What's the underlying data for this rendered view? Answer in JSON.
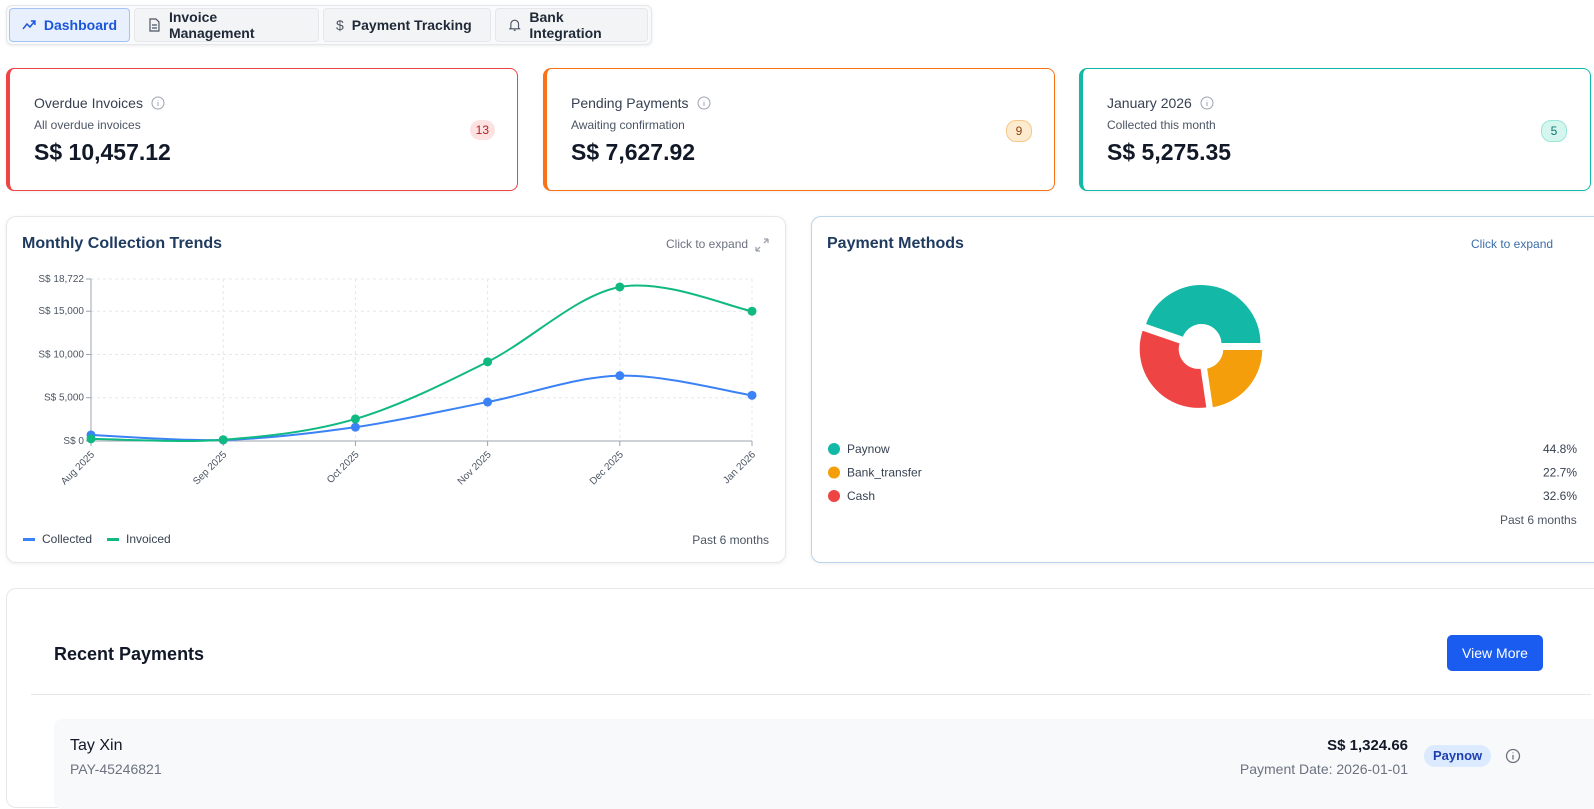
{
  "nav": {
    "tabs": [
      "Dashboard",
      "Invoice Management",
      "Payment Tracking",
      "Bank Integration"
    ]
  },
  "cards": [
    {
      "title": "Overdue Invoices",
      "subtitle": "All overdue invoices",
      "amount": "S$ 10,457.12",
      "count": 13
    },
    {
      "title": "Pending Payments",
      "subtitle": "Awaiting confirmation",
      "amount": "S$ 7,627.92",
      "count": 9
    },
    {
      "title": "January 2026",
      "subtitle": "Collected this month",
      "amount": "S$ 5,275.35",
      "count": 5
    }
  ],
  "chart_data": [
    {
      "type": "line",
      "title": "Monthly Collection Trends",
      "expand_hint": "Click to expand",
      "footnote": "Past 6 months",
      "categories": [
        "Aug 2025",
        "Sep 2025",
        "Oct 2025",
        "Nov 2025",
        "Dec 2025",
        "Jan 2026"
      ],
      "series": [
        {
          "name": "Collected",
          "color": "#3b82f6",
          "values": [
            700,
            120,
            1600,
            4500,
            7550,
            5275.35
          ]
        },
        {
          "name": "Invoiced",
          "color": "#10b981",
          "values": [
            250,
            150,
            2550,
            9150,
            17800,
            15000
          ]
        }
      ],
      "ylim": [
        0,
        18722
      ],
      "yticks": [
        {
          "value": 0,
          "label": "S$ 0"
        },
        {
          "value": 5000,
          "label": "S$ 5,000"
        },
        {
          "value": 10000,
          "label": "S$ 10,000"
        },
        {
          "value": 15000,
          "label": "S$ 15,000"
        },
        {
          "value": 18722,
          "label": "S$ 18,722"
        }
      ],
      "grid": true
    },
    {
      "type": "pie",
      "title": "Payment Methods",
      "expand_hint": "Click to expand",
      "footnote": "Past 6 months",
      "categories": [
        "Paynow",
        "Bank_transfer",
        "Cash"
      ],
      "values": [
        44.8,
        22.7,
        32.6
      ],
      "value_labels": [
        "44.8%",
        "22.7%",
        "32.6%"
      ],
      "colors": [
        "#14b8a6",
        "#f59e0b",
        "#ef4444"
      ]
    }
  ],
  "recent_payments": {
    "title": "Recent Payments",
    "button": "View More",
    "items": [
      {
        "name": "Tay Xin",
        "id": "PAY-45246821",
        "amount": "S$ 1,324.66",
        "method": "Paynow",
        "date": "Payment Date: 2026-01-01"
      }
    ]
  }
}
